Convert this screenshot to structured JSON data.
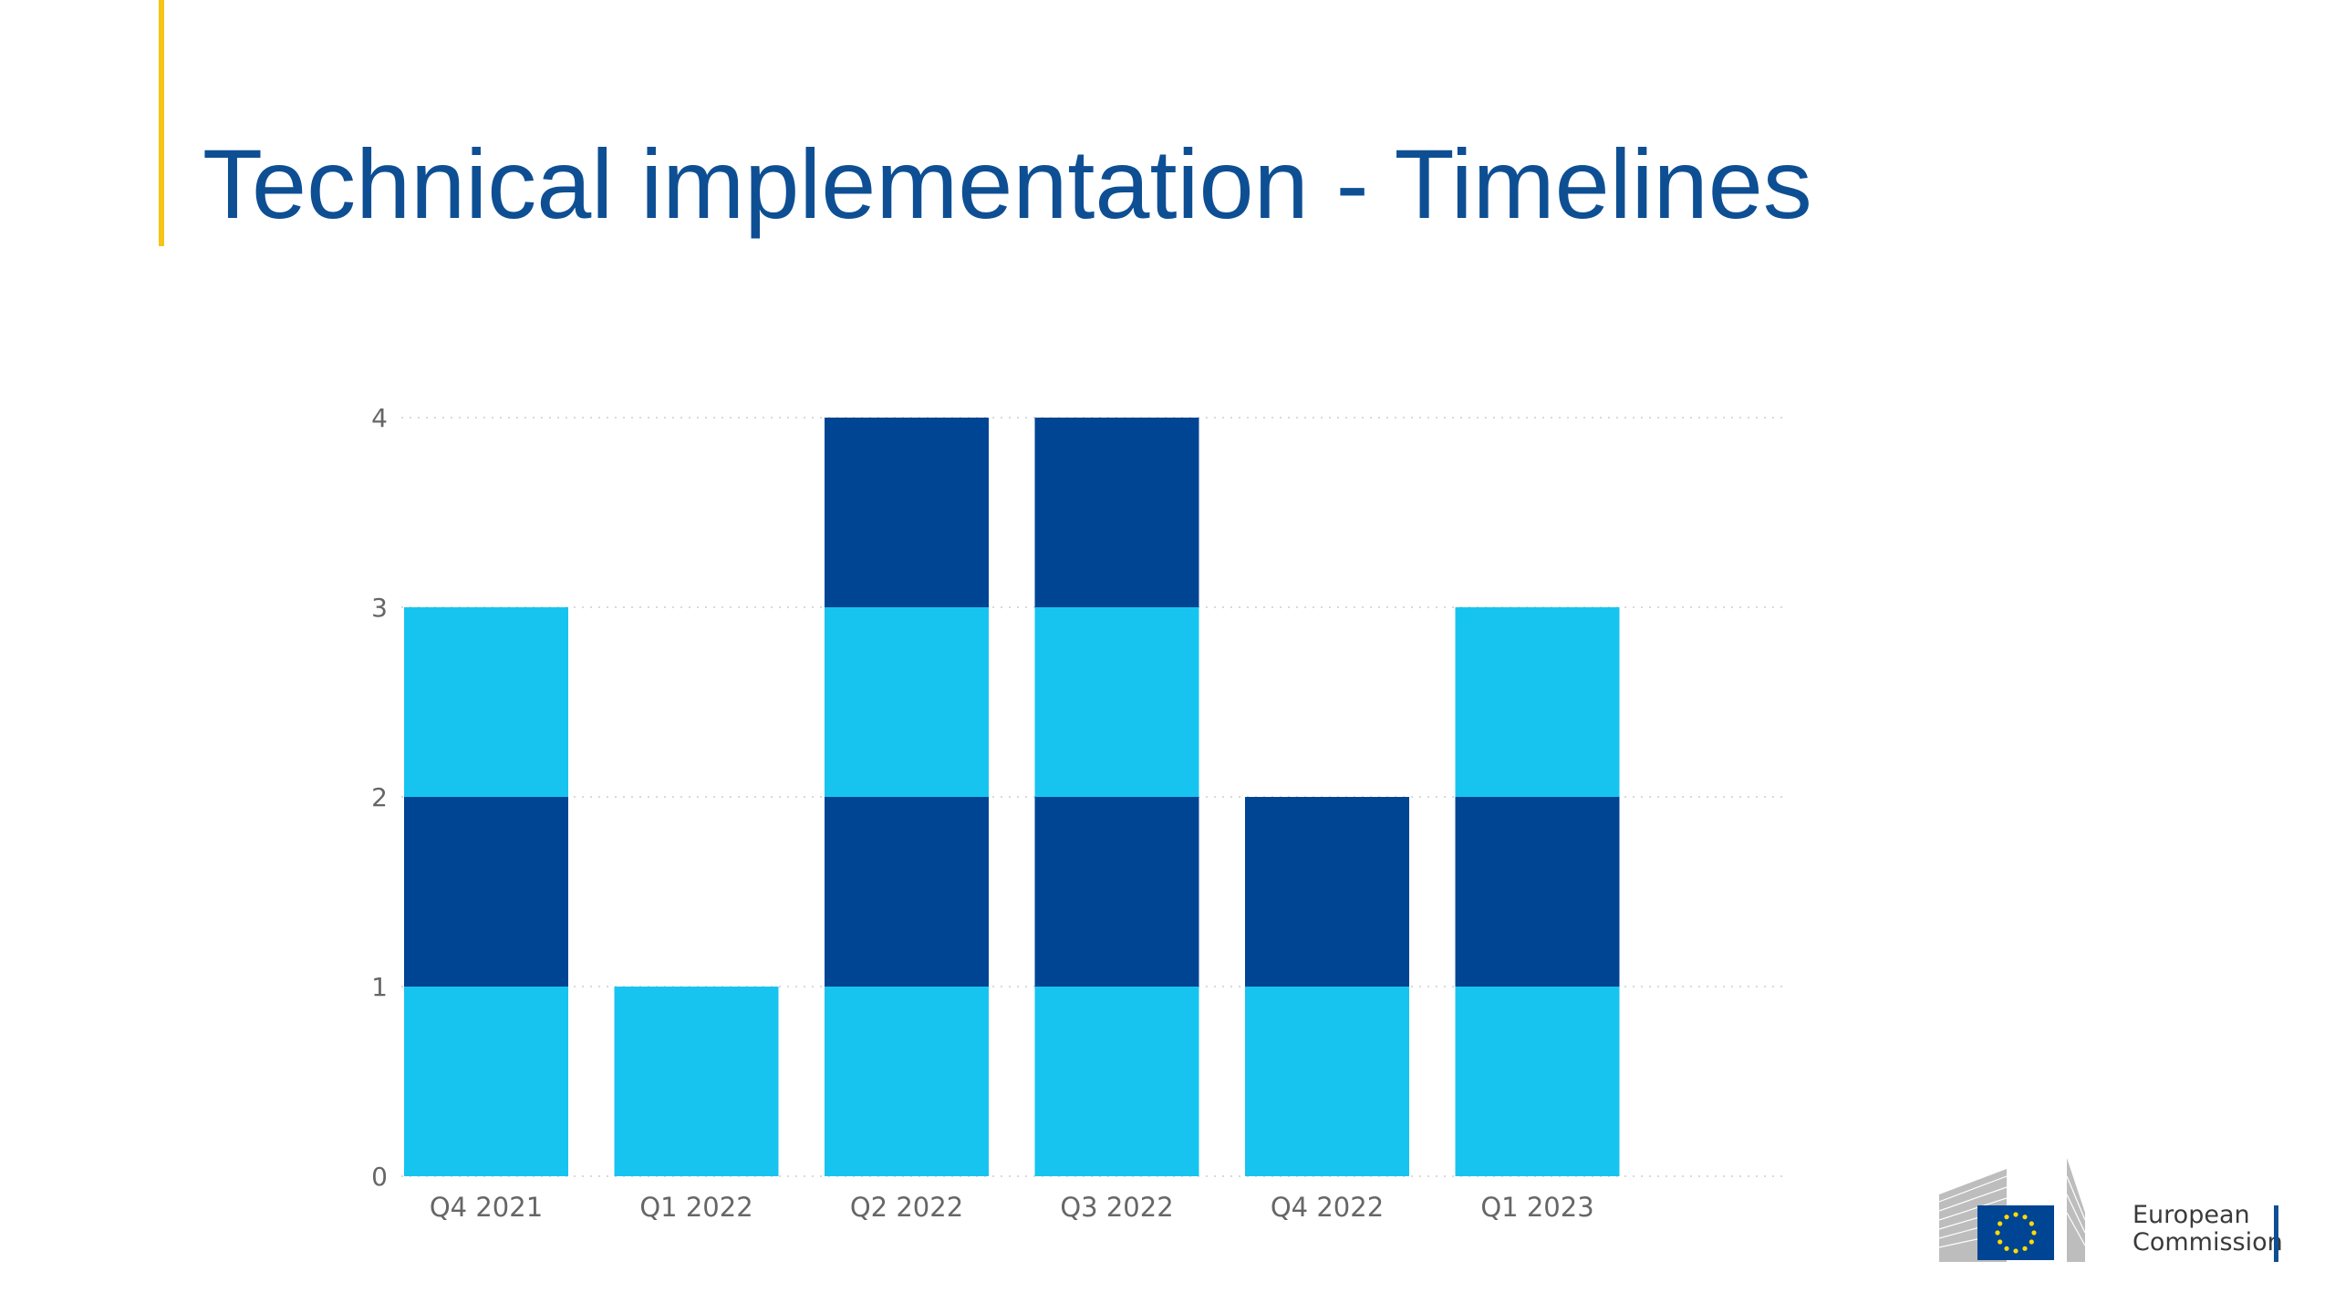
{
  "slide": {
    "title": "Technical implementation - Timelines",
    "accent_color": "#f5c518",
    "title_color": "#0e4f94"
  },
  "chart_data": {
    "type": "bar",
    "stacked": true,
    "categories": [
      "Q4 2021",
      "Q1 2022",
      "Q2 2022",
      "Q3 2022",
      "Q4 2022",
      "Q1 2023"
    ],
    "stack_segments": [
      [
        {
          "value": 1,
          "color": "#17c4f0"
        },
        {
          "value": 1,
          "color": "#004494"
        },
        {
          "value": 1,
          "color": "#17c4f0"
        }
      ],
      [
        {
          "value": 1,
          "color": "#17c4f0"
        }
      ],
      [
        {
          "value": 1,
          "color": "#17c4f0"
        },
        {
          "value": 1,
          "color": "#004494"
        },
        {
          "value": 1,
          "color": "#17c4f0"
        },
        {
          "value": 1,
          "color": "#004494"
        }
      ],
      [
        {
          "value": 1,
          "color": "#17c4f0"
        },
        {
          "value": 1,
          "color": "#004494"
        },
        {
          "value": 1,
          "color": "#17c4f0"
        },
        {
          "value": 1,
          "color": "#004494"
        }
      ],
      [
        {
          "value": 1,
          "color": "#17c4f0"
        },
        {
          "value": 1,
          "color": "#004494"
        }
      ],
      [
        {
          "value": 1,
          "color": "#17c4f0"
        },
        {
          "value": 1,
          "color": "#004494"
        },
        {
          "value": 1,
          "color": "#17c4f0"
        }
      ]
    ],
    "totals": [
      3,
      1,
      4,
      4,
      2,
      3
    ],
    "y_ticks": [
      0,
      1,
      2,
      3,
      4
    ],
    "ylim": [
      0,
      4
    ],
    "grid": "horizontal dotted",
    "legend": "none"
  },
  "logo": {
    "line1": "European",
    "line2": "Commission",
    "flag_color": "#004494",
    "star_color": "#ffdd00"
  }
}
